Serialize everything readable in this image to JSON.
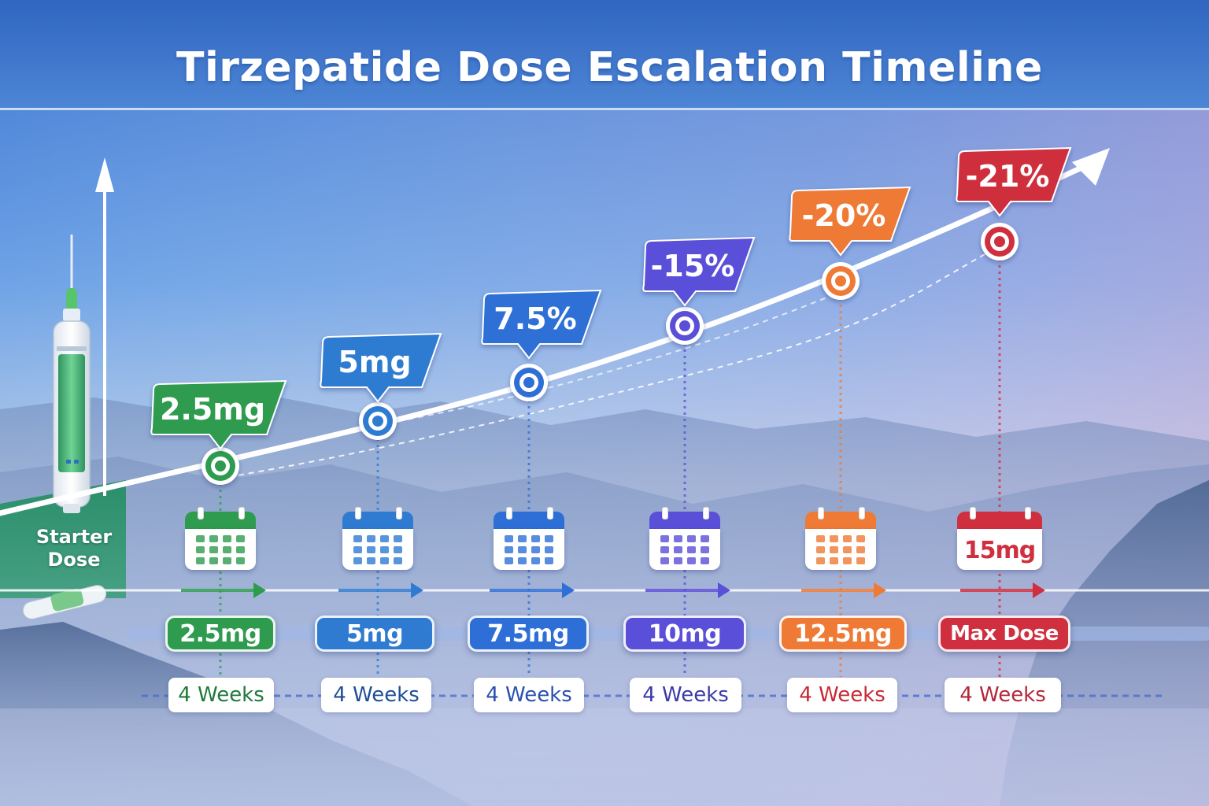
{
  "title": "Tirzepatide Dose Escalation Timeline",
  "starter_label": {
    "line1": "Starter",
    "line2": "Dose"
  },
  "colors": {
    "green": "#2e9b4f",
    "blue": "#2f7bd1",
    "mid_blue": "#2d6fd6",
    "indigo": "#5a4fd8",
    "purple": "#6a3fcf",
    "orange": "#ee7a35",
    "red": "#cf2f3e"
  },
  "steps": [
    {
      "dose": "2.5mg",
      "bubble": "2.5mg",
      "duration": "4 Weeks",
      "color": "#2e9b4f",
      "text_color": "#1f7a3a",
      "level": 0.1
    },
    {
      "dose": "5mg",
      "bubble": "5mg",
      "duration": "4 Weeks",
      "color": "#2f7bd1",
      "text_color": "#1f4e96",
      "level": 0.3
    },
    {
      "dose": "7.5mg",
      "bubble": "7.5%",
      "duration": "4 Weeks",
      "color": "#2d6fd6",
      "text_color": "#2a50b0",
      "level": 0.48
    },
    {
      "dose": "10mg",
      "bubble": "-15%",
      "duration": "4 Weeks",
      "color": "#5a4fd8",
      "text_color": "#3a3ba8",
      "level": 0.66
    },
    {
      "dose": "12.5mg",
      "bubble": "-20%",
      "duration": "4 Weeks",
      "color": "#ee7a35",
      "text_color": "#c62a36",
      "level": 0.82
    },
    {
      "dose": "Max Dose",
      "bubble": "-21%",
      "duration": "4 Weeks",
      "color": "#cf2f3e",
      "text_color": "#b3283a",
      "level": 0.94,
      "calendar_label": "15mg"
    }
  ]
}
